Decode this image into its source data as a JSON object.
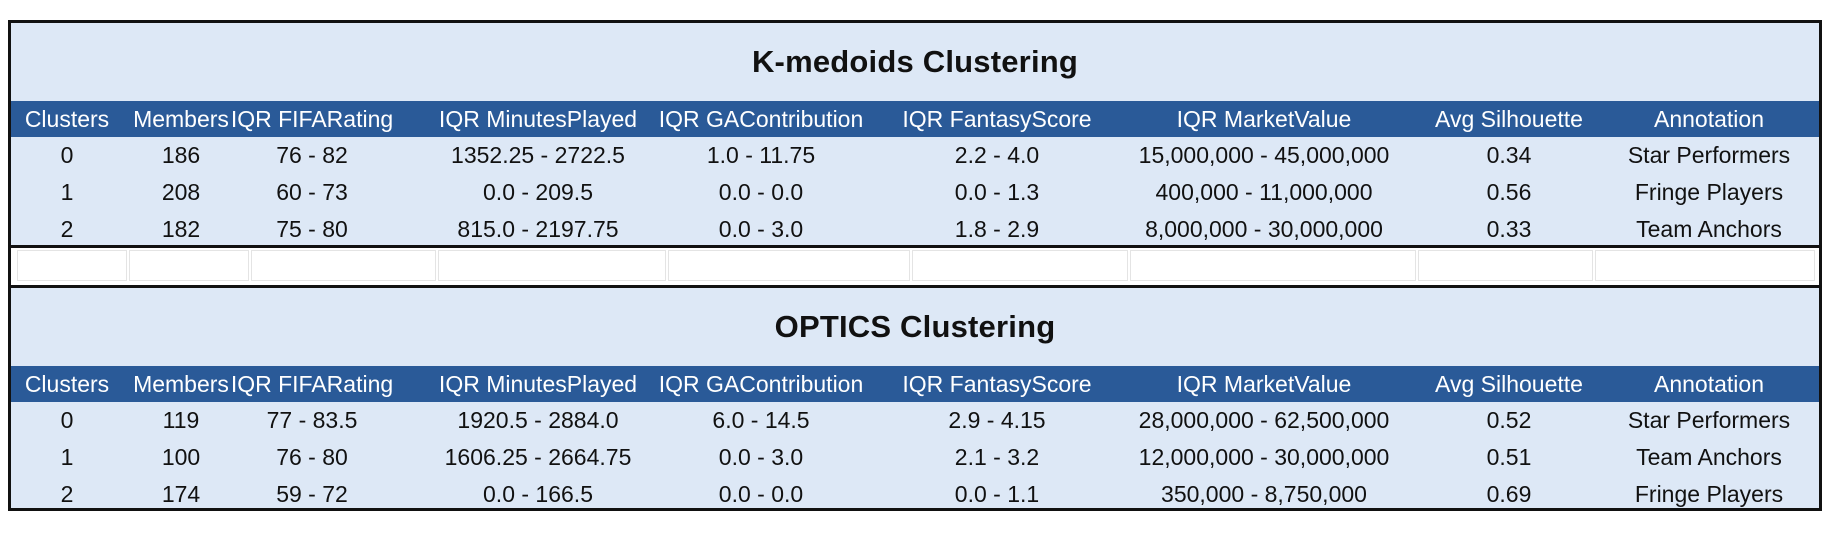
{
  "columns": [
    "Clusters",
    "Members",
    "IQR FIFARating",
    "IQR MinutesPlayed",
    "IQR GAContribution",
    "IQR FantasyScore",
    "IQR MarketValue",
    "Avg Silhouette",
    "Annotation"
  ],
  "tables": {
    "kmedoids": {
      "title": "K-medoids Clustering",
      "rows": [
        [
          "0",
          "186",
          "76 - 82",
          "1352.25 - 2722.5",
          "1.0 - 11.75",
          "2.2 - 4.0",
          "15,000,000 - 45,000,000",
          "0.34",
          "Star Performers"
        ],
        [
          "1",
          "208",
          "60 - 73",
          "0.0 - 209.5",
          "0.0 - 0.0",
          "0.0 - 1.3",
          "400,000 - 11,000,000",
          "0.56",
          "Fringe Players"
        ],
        [
          "2",
          "182",
          "75 - 80",
          "815.0 - 2197.75",
          "0.0 - 3.0",
          "1.8 - 2.9",
          "8,000,000 - 30,000,000",
          "0.33",
          "Team Anchors"
        ]
      ]
    },
    "optics": {
      "title": "OPTICS Clustering",
      "rows": [
        [
          "0",
          "119",
          "77 - 83.5",
          "1920.5 - 2884.0",
          "6.0 - 14.5",
          "2.9 - 4.15",
          "28,000,000 - 62,500,000",
          "0.52",
          "Star Performers"
        ],
        [
          "1",
          "100",
          "76 - 80",
          "1606.25 - 2664.75",
          "0.0 - 3.0",
          "2.1 - 3.2",
          "12,000,000 - 30,000,000",
          "0.51",
          "Team Anchors"
        ],
        [
          "2",
          "174",
          "59 - 72",
          "0.0 - 166.5",
          "0.0 - 0.0",
          "0.0 - 1.1",
          "350,000 - 8,750,000",
          "0.69",
          "Fringe Players"
        ]
      ]
    }
  },
  "colors": {
    "header_bg": "#2a5a98",
    "header_text": "#ffffff",
    "body_bg": "#dde8f6",
    "border": "#111111"
  }
}
